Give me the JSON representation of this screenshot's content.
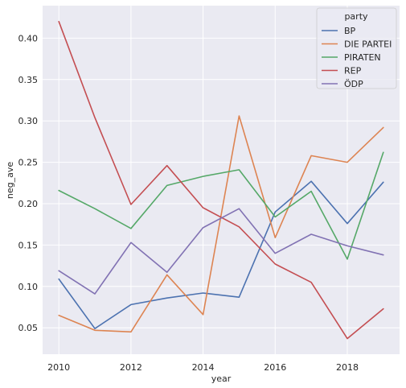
{
  "chart_data": {
    "type": "line",
    "title": "",
    "xlabel": "year",
    "ylabel": "neg_ave",
    "x": [
      2010,
      2011,
      2012,
      2013,
      2014,
      2015,
      2016,
      2017,
      2018,
      2019
    ],
    "xticks": [
      2010,
      2012,
      2014,
      2016,
      2018
    ],
    "yticks": [
      0.05,
      0.1,
      0.15,
      0.2,
      0.25,
      0.3,
      0.35,
      0.4
    ],
    "ytick_labels": [
      "0.05",
      "0.10",
      "0.15",
      "0.20",
      "0.25",
      "0.30",
      "0.35",
      "0.40"
    ],
    "xlim": [
      2009.55,
      2019.45
    ],
    "ylim": [
      0.0181,
      0.4393
    ],
    "grid": true,
    "legend": {
      "title": "party",
      "position": "top-right"
    },
    "series": [
      {
        "name": "BP",
        "color": "#4c72b0",
        "values": [
          0.109,
          0.049,
          0.078,
          0.086,
          0.092,
          0.087,
          0.19,
          0.227,
          0.176,
          0.226
        ]
      },
      {
        "name": "DIE PARTEI",
        "color": "#dd8452",
        "values": [
          0.065,
          0.047,
          0.045,
          0.114,
          0.066,
          0.306,
          0.159,
          0.258,
          0.25,
          0.292
        ]
      },
      {
        "name": "PIRATEN",
        "color": "#55a868",
        "values": [
          0.216,
          0.194,
          0.17,
          0.222,
          0.233,
          0.241,
          0.184,
          0.215,
          0.133,
          0.262
        ]
      },
      {
        "name": "REP",
        "color": "#c44e52",
        "values": [
          0.42,
          0.304,
          0.199,
          0.246,
          0.195,
          0.172,
          0.127,
          0.105,
          0.037,
          0.073
        ]
      },
      {
        "name": "ÖDP",
        "color": "#8172b3",
        "values": [
          0.119,
          0.091,
          0.153,
          0.117,
          0.171,
          0.194,
          0.14,
          0.163,
          0.149,
          0.138
        ]
      }
    ]
  }
}
